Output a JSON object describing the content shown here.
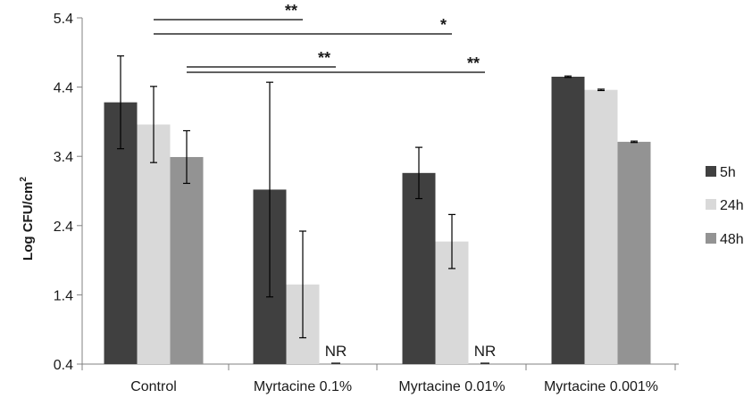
{
  "chart_data": {
    "type": "bar",
    "ylabel": "Log CFU/cm",
    "ylabel_sup": "2",
    "ylim": [
      0.4,
      5.4
    ],
    "yticks": [
      "0.4",
      "1.4",
      "2.4",
      "3.4",
      "4.4",
      "5.4"
    ],
    "categories": [
      "Control",
      "Myrtacine 0.1%",
      "Myrtacine 0.01%",
      "Myrtacine 0.001%"
    ],
    "legend_position": "right",
    "grid": false,
    "series": [
      {
        "name": "5h",
        "color": "#404040",
        "values": [
          4.18,
          2.92,
          3.16,
          4.55
        ],
        "errors": [
          0.67,
          1.55,
          0.37,
          0.01
        ]
      },
      {
        "name": "24h",
        "color": "#d9d9d9",
        "values": [
          3.86,
          1.55,
          2.17,
          4.36
        ],
        "errors": [
          0.55,
          0.77,
          0.39,
          0.01
        ]
      },
      {
        "name": "48h",
        "color": "#939393",
        "values": [
          3.39,
          0.4,
          0.4,
          3.61
        ],
        "errors": [
          0.38,
          0,
          0,
          0.01
        ]
      }
    ],
    "not_reported": [
      {
        "category": 1,
        "series": 2,
        "label": "NR"
      },
      {
        "category": 2,
        "series": 2,
        "label": "NR"
      }
    ],
    "significance": [
      {
        "from": {
          "category": 0,
          "series": 1
        },
        "to": {
          "category": 1,
          "series": 1
        },
        "label": "**"
      },
      {
        "from": {
          "category": 0,
          "series": 1
        },
        "to": {
          "category": 2,
          "series": 1
        },
        "label": "*"
      },
      {
        "from": {
          "category": 0,
          "series": 2
        },
        "to": {
          "category": 1,
          "series": 2
        },
        "label": "**"
      },
      {
        "from": {
          "category": 0,
          "series": 2
        },
        "to": {
          "category": 2,
          "series": 2
        },
        "label": "**"
      }
    ]
  }
}
